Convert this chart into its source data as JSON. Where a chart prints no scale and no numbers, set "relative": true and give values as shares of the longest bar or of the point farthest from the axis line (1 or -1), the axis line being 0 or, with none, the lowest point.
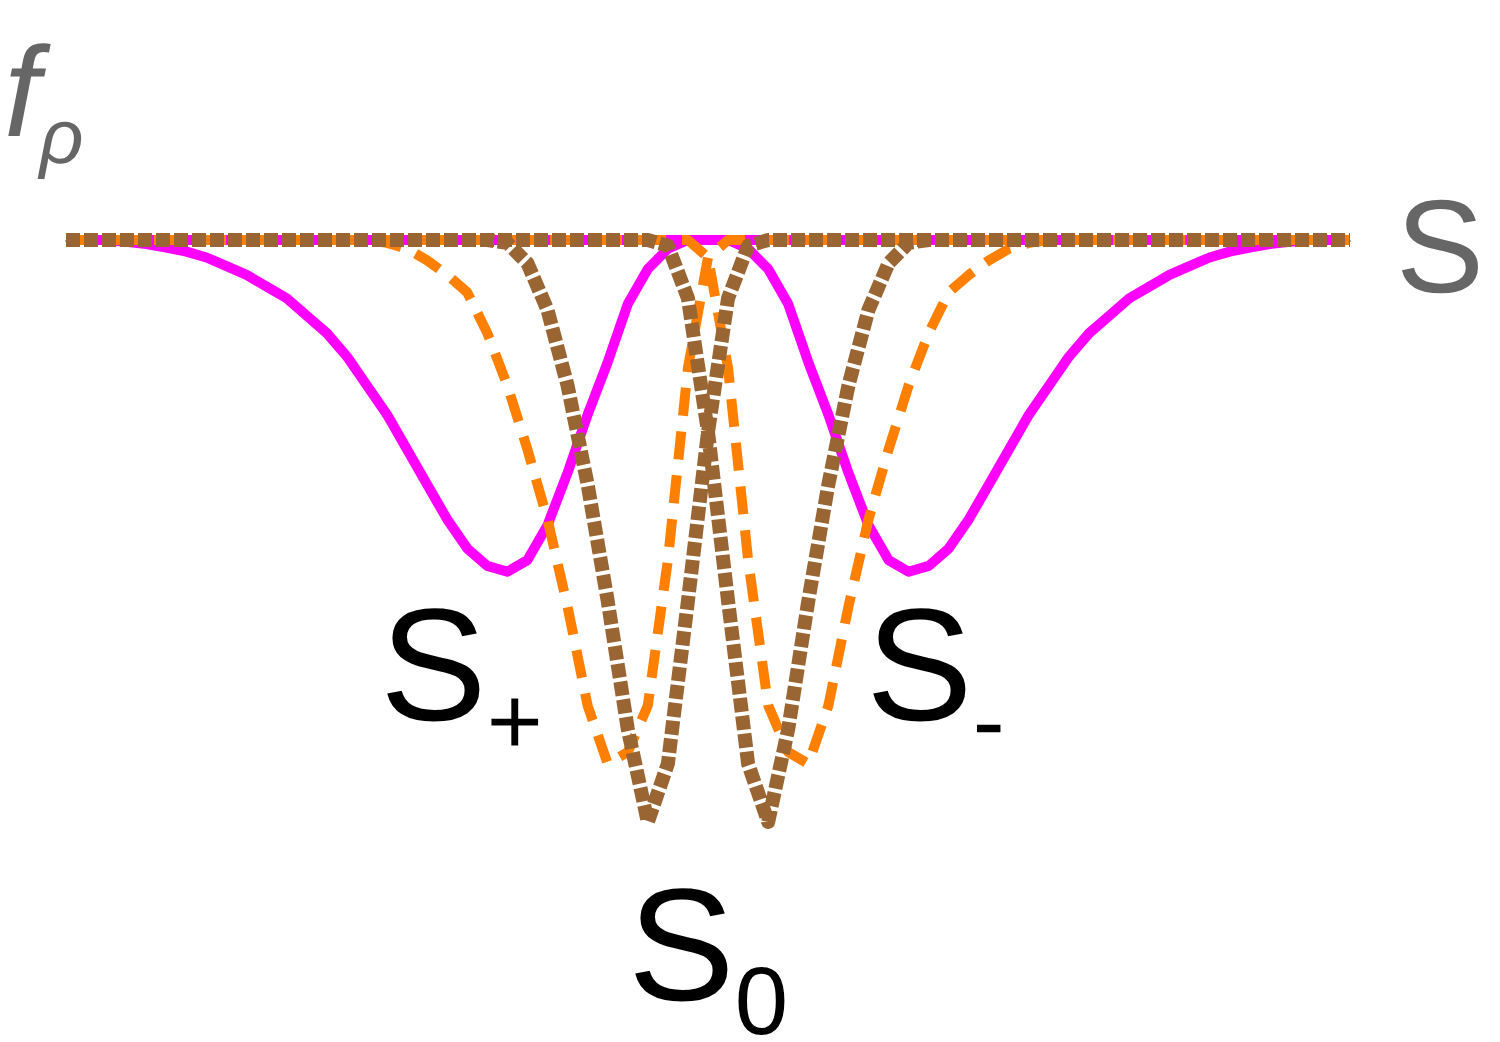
{
  "chart_data": {
    "type": "line",
    "relative": true,
    "xlabel": "S",
    "ylabel": "f$_{ρ}$",
    "categories": [
      null,
      null,
      null,
      null,
      null,
      null,
      null,
      null,
      null,
      null,
      null,
      null,
      null,
      null,
      null,
      null,
      null,
      null,
      null,
      null,
      null,
      null,
      null,
      null,
      null,
      null,
      null,
      null,
      null,
      null,
      null,
      null,
      null,
      null,
      null,
      null,
      null,
      null,
      null,
      null,
      null,
      null,
      null,
      null,
      null,
      null,
      null,
      null,
      null,
      null,
      null,
      null,
      null,
      null,
      null,
      null,
      null,
      null,
      null,
      null,
      null,
      null,
      null,
      null,
      null
    ],
    "series": [
      {
        "color": "#ff00ff",
        "line_style": "solid",
        "values": [
          0,
          0,
          0,
          -0.003,
          -0.007,
          -0.013,
          -0.02,
          -0.03,
          -0.045,
          -0.06,
          -0.08,
          -0.1,
          -0.13,
          -0.16,
          -0.2,
          -0.25,
          -0.3,
          -0.36,
          -0.42,
          -0.48,
          -0.53,
          -0.56,
          -0.57,
          -0.55,
          -0.49,
          -0.4,
          -0.3,
          -0.21,
          -0.11,
          -0.05,
          -0.015,
          0,
          0,
          0,
          0,
          0,
          0,
          0,
          0,
          0,
          0,
          0,
          0,
          0,
          0,
          0,
          0,
          0,
          0,
          0,
          0,
          0,
          0,
          0,
          0,
          0,
          0,
          0,
          0,
          0,
          0,
          0,
          0,
          0,
          0
        ]
      },
      {
        "color": "#ff00ff",
        "line_style": "solid",
        "values": [
          0,
          0,
          0,
          0,
          0,
          0,
          0,
          0,
          0,
          0,
          0,
          0,
          0,
          0,
          0,
          0,
          0,
          0,
          0,
          0,
          0,
          0,
          0,
          0,
          0,
          0,
          0,
          0,
          0,
          0,
          0,
          0,
          0,
          0,
          -0.015,
          -0.05,
          -0.11,
          -0.21,
          -0.3,
          -0.4,
          -0.49,
          -0.55,
          -0.57,
          -0.56,
          -0.53,
          -0.48,
          -0.42,
          -0.36,
          -0.3,
          -0.25,
          -0.2,
          -0.16,
          -0.13,
          -0.1,
          -0.08,
          -0.06,
          -0.045,
          -0.03,
          -0.02,
          -0.013,
          -0.007,
          -0.003,
          0,
          0,
          0
        ]
      },
      {
        "color": "#ff8000",
        "line_style": "dashed",
        "values": [
          0,
          0,
          0,
          0,
          0,
          0,
          0,
          0,
          0,
          0,
          0,
          0,
          0,
          0,
          0,
          0,
          -0.005,
          -0.015,
          -0.035,
          -0.06,
          -0.09,
          -0.16,
          -0.25,
          -0.36,
          -0.48,
          -0.63,
          -0.8,
          -0.9,
          -0.88,
          -0.8,
          -0.55,
          -0.22,
          -0.03,
          0,
          0,
          0,
          0,
          0,
          0,
          0,
          0,
          0,
          0,
          0,
          0,
          0,
          0,
          0,
          0,
          0,
          0,
          0,
          0,
          0,
          0,
          0,
          0,
          0,
          0,
          0,
          0,
          0,
          0,
          0,
          0
        ]
      },
      {
        "color": "#ff8000",
        "line_style": "dashed",
        "values": [
          0,
          0,
          0,
          0,
          0,
          0,
          0,
          0,
          0,
          0,
          0,
          0,
          0,
          0,
          0,
          0,
          0,
          0,
          0,
          0,
          0,
          0,
          0,
          0,
          0,
          0,
          0,
          0,
          0,
          0,
          0,
          0,
          -0.03,
          -0.22,
          -0.55,
          -0.8,
          -0.88,
          -0.9,
          -0.8,
          -0.63,
          -0.48,
          -0.36,
          -0.25,
          -0.16,
          -0.09,
          -0.06,
          -0.035,
          -0.015,
          -0.005,
          0,
          0,
          0,
          0,
          0,
          0,
          0,
          0,
          0,
          0,
          0,
          0,
          0,
          0,
          0,
          0
        ]
      },
      {
        "color": "#996633",
        "line_style": "dotted",
        "values": [
          0,
          0,
          0,
          0,
          0,
          0,
          0,
          0,
          0,
          0,
          0,
          0,
          0,
          0,
          0,
          0,
          0,
          0,
          0,
          0,
          0,
          0,
          -0.005,
          -0.04,
          -0.12,
          -0.25,
          -0.42,
          -0.62,
          -0.84,
          -1,
          -0.9,
          -0.62,
          -0.33,
          -0.1,
          -0.01,
          0,
          0,
          0,
          0,
          0,
          0,
          0,
          0,
          0,
          0,
          0,
          0,
          0,
          0,
          0,
          0,
          0,
          0,
          0,
          0,
          0,
          0,
          0,
          0,
          0,
          0,
          0,
          0,
          0,
          0
        ]
      },
      {
        "color": "#996633",
        "line_style": "dotted",
        "values": [
          0,
          0,
          0,
          0,
          0,
          0,
          0,
          0,
          0,
          0,
          0,
          0,
          0,
          0,
          0,
          0,
          0,
          0,
          0,
          0,
          0,
          0,
          0,
          0,
          0,
          0,
          0,
          0,
          0,
          0,
          -0.01,
          -0.1,
          -0.33,
          -0.62,
          -0.9,
          -1,
          -0.84,
          -0.62,
          -0.42,
          -0.25,
          -0.12,
          -0.04,
          -0.005,
          0,
          0,
          0,
          0,
          0,
          0,
          0,
          0,
          0,
          0,
          0,
          0,
          0,
          0,
          0,
          0,
          0,
          0,
          0,
          0,
          0,
          0
        ]
      }
    ],
    "annotations": [
      "S$_{+}$",
      "S$_{-}$",
      "S$_{0}$"
    ]
  }
}
